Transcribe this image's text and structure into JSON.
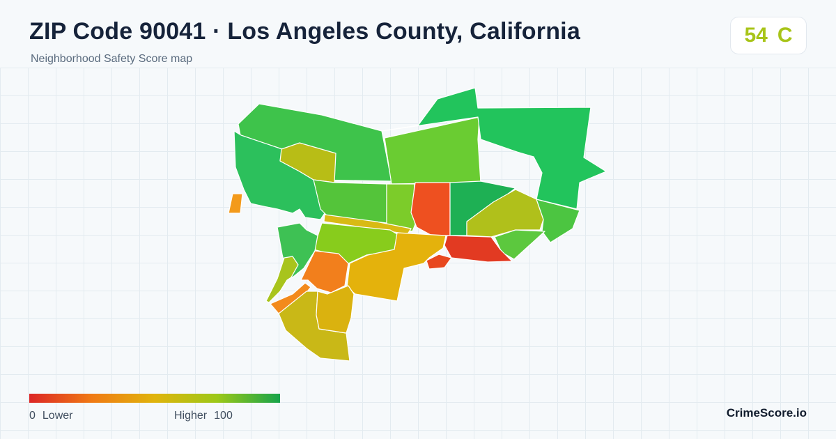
{
  "header": {
    "title": "ZIP Code 90041 · Los Angeles County, California",
    "subtitle": "Neighborhood Safety Score map"
  },
  "score": {
    "value": "54",
    "grade": "C",
    "color": "#a8c419"
  },
  "legend": {
    "min_value": "0",
    "min_label": "Lower",
    "max_label": "Higher",
    "max_value": "100",
    "colors": [
      "#dc2626",
      "#f07a14",
      "#e0b40c",
      "#9cc818",
      "#16a34a"
    ]
  },
  "brand": "CrimeScore.io",
  "map": {
    "regions": [
      {
        "name": "northwest-hills",
        "color": "#3ec34b"
      },
      {
        "name": "north-central",
        "color": "#6acc32"
      },
      {
        "name": "northeast-ridge",
        "color": "#22c45c"
      },
      {
        "name": "west-strip",
        "color": "#2cc05c"
      },
      {
        "name": "far-west-pocket",
        "color": "#f39a1b"
      },
      {
        "name": "highland-park-north",
        "color": "#b8bd16"
      },
      {
        "name": "mount-washington",
        "color": "#54c43a"
      },
      {
        "name": "central-west",
        "color": "#7ccc2a"
      },
      {
        "name": "central-red",
        "color": "#ee5020"
      },
      {
        "name": "eagle-rock-core",
        "color": "#1eb054"
      },
      {
        "name": "eagle-rock-east",
        "color": "#b0c01b"
      },
      {
        "name": "eastern-edge",
        "color": "#4cc541"
      },
      {
        "name": "southeast-green",
        "color": "#5cc83e"
      },
      {
        "name": "south-red",
        "color": "#e23a22"
      },
      {
        "name": "corridor-strip",
        "color": "#d8ba14"
      },
      {
        "name": "lower-central-green",
        "color": "#88cc1c"
      },
      {
        "name": "southwest-green",
        "color": "#3ec154"
      },
      {
        "name": "south-orange",
        "color": "#f27f1c"
      },
      {
        "name": "south-yellow",
        "color": "#e4b20c"
      },
      {
        "name": "small-red",
        "color": "#e8481f"
      },
      {
        "name": "southwest-lime",
        "color": "#a8c41c"
      },
      {
        "name": "southwest-orange",
        "color": "#f38a1c"
      },
      {
        "name": "south-olive",
        "color": "#c9b817"
      },
      {
        "name": "south-mustard",
        "color": "#dab20f"
      }
    ]
  }
}
